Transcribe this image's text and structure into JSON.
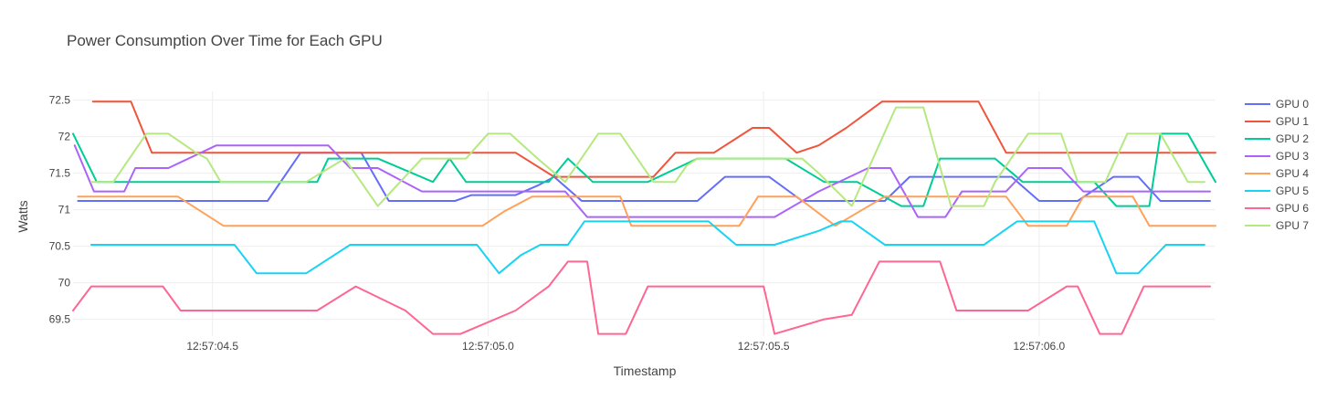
{
  "chart_data": {
    "type": "line",
    "title": "Power Consumption Over Time for Each GPU",
    "xlabel": "Timestamp",
    "ylabel": "Watts",
    "x_unit": "seconds after 12:57:00",
    "xlim": [
      4.247,
      6.32
    ],
    "ylim": [
      69.27,
      72.62
    ],
    "x_ticks": [
      4.5,
      5.0,
      5.5,
      6.0
    ],
    "x_tick_labels": [
      "12:57:04.5",
      "12:57:05.0",
      "12:57:05.5",
      "12:57:06.0"
    ],
    "y_ticks": [
      69.5,
      70,
      70.5,
      71,
      71.5,
      72,
      72.5
    ],
    "y_tick_labels": [
      "69.5",
      "70",
      "70.5",
      "71",
      "71.5",
      "72",
      "72.5"
    ],
    "grid": true,
    "legend_position": "top-right",
    "series": [
      {
        "name": "GPU 0",
        "color": "#636efa",
        "points": [
          [
            4.256,
            71.12
          ],
          [
            4.35,
            71.12
          ],
          [
            4.517,
            71.12
          ],
          [
            4.6,
            71.12
          ],
          [
            4.66,
            71.78
          ],
          [
            4.77,
            71.78
          ],
          [
            4.82,
            71.12
          ],
          [
            4.94,
            71.12
          ],
          [
            4.97,
            71.2
          ],
          [
            5.05,
            71.2
          ],
          [
            5.09,
            71.33
          ],
          [
            5.12,
            71.45
          ],
          [
            5.17,
            71.12
          ],
          [
            5.25,
            71.12
          ],
          [
            5.3,
            71.12
          ],
          [
            5.38,
            71.12
          ],
          [
            5.43,
            71.45
          ],
          [
            5.51,
            71.45
          ],
          [
            5.57,
            71.12
          ],
          [
            5.655,
            71.12
          ],
          [
            5.72,
            71.12
          ],
          [
            5.765,
            71.45
          ],
          [
            5.82,
            71.45
          ],
          [
            5.92,
            71.45
          ],
          [
            5.95,
            71.45
          ],
          [
            6.0,
            71.12
          ],
          [
            6.07,
            71.12
          ],
          [
            6.135,
            71.45
          ],
          [
            6.18,
            71.45
          ],
          [
            6.22,
            71.12
          ],
          [
            6.31,
            71.12
          ]
        ]
      },
      {
        "name": "GPU 1",
        "color": "#ef553b",
        "points": [
          [
            4.283,
            72.48
          ],
          [
            4.352,
            72.48
          ],
          [
            4.39,
            71.78
          ],
          [
            4.48,
            71.78
          ],
          [
            4.55,
            71.78
          ],
          [
            4.69,
            71.78
          ],
          [
            4.8,
            71.78
          ],
          [
            4.94,
            71.78
          ],
          [
            5.05,
            71.78
          ],
          [
            5.12,
            71.45
          ],
          [
            5.2,
            71.45
          ],
          [
            5.3,
            71.45
          ],
          [
            5.34,
            71.78
          ],
          [
            5.41,
            71.78
          ],
          [
            5.48,
            72.12
          ],
          [
            5.51,
            72.12
          ],
          [
            5.56,
            71.78
          ],
          [
            5.6,
            71.88
          ],
          [
            5.65,
            72.12
          ],
          [
            5.715,
            72.48
          ],
          [
            5.83,
            72.48
          ],
          [
            5.89,
            72.48
          ],
          [
            5.94,
            71.78
          ],
          [
            6.0,
            71.78
          ],
          [
            6.1,
            71.78
          ],
          [
            6.2,
            71.78
          ],
          [
            6.32,
            71.78
          ]
        ]
      },
      {
        "name": "GPU 2",
        "color": "#00cc96",
        "points": [
          [
            4.247,
            72.04
          ],
          [
            4.29,
            71.38
          ],
          [
            4.38,
            71.38
          ],
          [
            4.467,
            71.38
          ],
          [
            4.537,
            71.38
          ],
          [
            4.66,
            71.38
          ],
          [
            4.69,
            71.38
          ],
          [
            4.71,
            71.7
          ],
          [
            4.8,
            71.7
          ],
          [
            4.9,
            71.38
          ],
          [
            4.93,
            71.7
          ],
          [
            4.96,
            71.38
          ],
          [
            5.03,
            71.38
          ],
          [
            5.11,
            71.38
          ],
          [
            5.145,
            71.7
          ],
          [
            5.19,
            71.38
          ],
          [
            5.25,
            71.38
          ],
          [
            5.29,
            71.38
          ],
          [
            5.38,
            71.7
          ],
          [
            5.41,
            71.7
          ],
          [
            5.54,
            71.7
          ],
          [
            5.61,
            71.38
          ],
          [
            5.67,
            71.38
          ],
          [
            5.75,
            71.05
          ],
          [
            5.79,
            71.05
          ],
          [
            5.82,
            71.7
          ],
          [
            5.92,
            71.7
          ],
          [
            5.97,
            71.38
          ],
          [
            6.06,
            71.38
          ],
          [
            6.1,
            71.38
          ],
          [
            6.14,
            71.05
          ],
          [
            6.2,
            71.05
          ],
          [
            6.22,
            72.04
          ],
          [
            6.27,
            72.04
          ],
          [
            6.32,
            71.38
          ]
        ]
      },
      {
        "name": "GPU 3",
        "color": "#ab63fa",
        "points": [
          [
            4.25,
            71.88
          ],
          [
            4.285,
            71.25
          ],
          [
            4.34,
            71.25
          ],
          [
            4.36,
            71.57
          ],
          [
            4.42,
            71.57
          ],
          [
            4.507,
            71.88
          ],
          [
            4.6,
            71.88
          ],
          [
            4.71,
            71.88
          ],
          [
            4.75,
            71.57
          ],
          [
            4.8,
            71.57
          ],
          [
            4.88,
            71.25
          ],
          [
            5.0,
            71.25
          ],
          [
            5.04,
            71.25
          ],
          [
            5.11,
            71.25
          ],
          [
            5.14,
            71.25
          ],
          [
            5.18,
            70.9
          ],
          [
            5.27,
            70.9
          ],
          [
            5.35,
            70.9
          ],
          [
            5.45,
            70.9
          ],
          [
            5.52,
            70.9
          ],
          [
            5.6,
            71.25
          ],
          [
            5.69,
            71.57
          ],
          [
            5.73,
            71.57
          ],
          [
            5.78,
            70.9
          ],
          [
            5.83,
            70.9
          ],
          [
            5.86,
            71.25
          ],
          [
            5.94,
            71.25
          ],
          [
            5.98,
            71.57
          ],
          [
            6.04,
            71.57
          ],
          [
            6.08,
            71.25
          ],
          [
            6.2,
            71.25
          ],
          [
            6.31,
            71.25
          ]
        ]
      },
      {
        "name": "GPU 4",
        "color": "#ffa15a",
        "points": [
          [
            4.256,
            71.18
          ],
          [
            4.35,
            71.18
          ],
          [
            4.437,
            71.18
          ],
          [
            4.52,
            70.78
          ],
          [
            4.6,
            70.78
          ],
          [
            4.74,
            70.78
          ],
          [
            4.9,
            70.78
          ],
          [
            4.99,
            70.78
          ],
          [
            5.03,
            70.98
          ],
          [
            5.08,
            71.18
          ],
          [
            5.2,
            71.18
          ],
          [
            5.24,
            71.18
          ],
          [
            5.26,
            70.78
          ],
          [
            5.4,
            70.78
          ],
          [
            5.456,
            70.78
          ],
          [
            5.49,
            71.18
          ],
          [
            5.56,
            71.18
          ],
          [
            5.63,
            70.78
          ],
          [
            5.72,
            71.18
          ],
          [
            5.8,
            71.18
          ],
          [
            5.89,
            71.18
          ],
          [
            5.94,
            71.18
          ],
          [
            5.98,
            70.78
          ],
          [
            6.05,
            70.78
          ],
          [
            6.08,
            71.18
          ],
          [
            6.17,
            71.18
          ],
          [
            6.2,
            70.78
          ],
          [
            6.32,
            70.78
          ]
        ]
      },
      {
        "name": "GPU 5",
        "color": "#19d3f3",
        "points": [
          [
            4.28,
            70.52
          ],
          [
            4.4,
            70.52
          ],
          [
            4.54,
            70.52
          ],
          [
            4.58,
            70.13
          ],
          [
            4.67,
            70.13
          ],
          [
            4.75,
            70.52
          ],
          [
            4.87,
            70.52
          ],
          [
            4.98,
            70.52
          ],
          [
            5.02,
            70.13
          ],
          [
            5.06,
            70.38
          ],
          [
            5.095,
            70.52
          ],
          [
            5.145,
            70.52
          ],
          [
            5.175,
            70.84
          ],
          [
            5.23,
            70.84
          ],
          [
            5.34,
            70.84
          ],
          [
            5.4,
            70.84
          ],
          [
            5.45,
            70.52
          ],
          [
            5.52,
            70.52
          ],
          [
            5.6,
            70.71
          ],
          [
            5.64,
            70.84
          ],
          [
            5.66,
            70.84
          ],
          [
            5.72,
            70.52
          ],
          [
            5.9,
            70.52
          ],
          [
            5.96,
            70.84
          ],
          [
            6.02,
            70.84
          ],
          [
            6.1,
            70.84
          ],
          [
            6.14,
            70.13
          ],
          [
            6.18,
            70.13
          ],
          [
            6.23,
            70.52
          ],
          [
            6.3,
            70.52
          ]
        ]
      },
      {
        "name": "GPU 6",
        "color": "#ff6692",
        "points": [
          [
            4.247,
            69.62
          ],
          [
            4.28,
            69.95
          ],
          [
            4.41,
            69.95
          ],
          [
            4.442,
            69.62
          ],
          [
            4.55,
            69.62
          ],
          [
            4.69,
            69.62
          ],
          [
            4.76,
            69.95
          ],
          [
            4.85,
            69.62
          ],
          [
            4.9,
            69.3
          ],
          [
            4.95,
            69.3
          ],
          [
            5.05,
            69.62
          ],
          [
            5.11,
            69.95
          ],
          [
            5.145,
            70.29
          ],
          [
            5.175,
            70.29
          ],
          [
            5.18,
            70.29
          ],
          [
            5.2,
            69.3
          ],
          [
            5.25,
            69.3
          ],
          [
            5.29,
            69.95
          ],
          [
            5.35,
            69.95
          ],
          [
            5.43,
            69.95
          ],
          [
            5.5,
            69.95
          ],
          [
            5.52,
            69.3
          ],
          [
            5.61,
            69.5
          ],
          [
            5.66,
            69.56
          ],
          [
            5.71,
            70.29
          ],
          [
            5.82,
            70.29
          ],
          [
            5.85,
            69.62
          ],
          [
            5.95,
            69.62
          ],
          [
            5.98,
            69.62
          ],
          [
            6.05,
            69.95
          ],
          [
            6.07,
            69.95
          ],
          [
            6.11,
            69.3
          ],
          [
            6.15,
            69.3
          ],
          [
            6.19,
            69.95
          ],
          [
            6.28,
            69.95
          ],
          [
            6.31,
            69.95
          ]
        ]
      },
      {
        "name": "GPU 7",
        "color": "#b6e880",
        "points": [
          [
            4.28,
            71.38
          ],
          [
            4.32,
            71.38
          ],
          [
            4.38,
            72.04
          ],
          [
            4.42,
            72.04
          ],
          [
            4.47,
            71.78
          ],
          [
            4.49,
            71.7
          ],
          [
            4.515,
            71.38
          ],
          [
            4.6,
            71.38
          ],
          [
            4.67,
            71.38
          ],
          [
            4.74,
            71.7
          ],
          [
            4.8,
            71.05
          ],
          [
            4.88,
            71.7
          ],
          [
            4.96,
            71.7
          ],
          [
            5.0,
            72.04
          ],
          [
            5.04,
            72.04
          ],
          [
            5.09,
            71.7
          ],
          [
            5.14,
            71.38
          ],
          [
            5.2,
            72.04
          ],
          [
            5.24,
            72.04
          ],
          [
            5.3,
            71.38
          ],
          [
            5.34,
            71.38
          ],
          [
            5.36,
            71.6
          ],
          [
            5.38,
            71.7
          ],
          [
            5.45,
            71.7
          ],
          [
            5.53,
            71.7
          ],
          [
            5.57,
            71.7
          ],
          [
            5.6,
            71.5
          ],
          [
            5.66,
            71.05
          ],
          [
            5.74,
            72.4
          ],
          [
            5.79,
            72.4
          ],
          [
            5.84,
            71.05
          ],
          [
            5.9,
            71.05
          ],
          [
            5.92,
            71.38
          ],
          [
            5.98,
            72.04
          ],
          [
            6.04,
            72.04
          ],
          [
            6.07,
            71.38
          ],
          [
            6.12,
            71.38
          ],
          [
            6.16,
            72.04
          ],
          [
            6.22,
            72.04
          ],
          [
            6.27,
            71.38
          ],
          [
            6.3,
            71.38
          ]
        ]
      }
    ]
  }
}
